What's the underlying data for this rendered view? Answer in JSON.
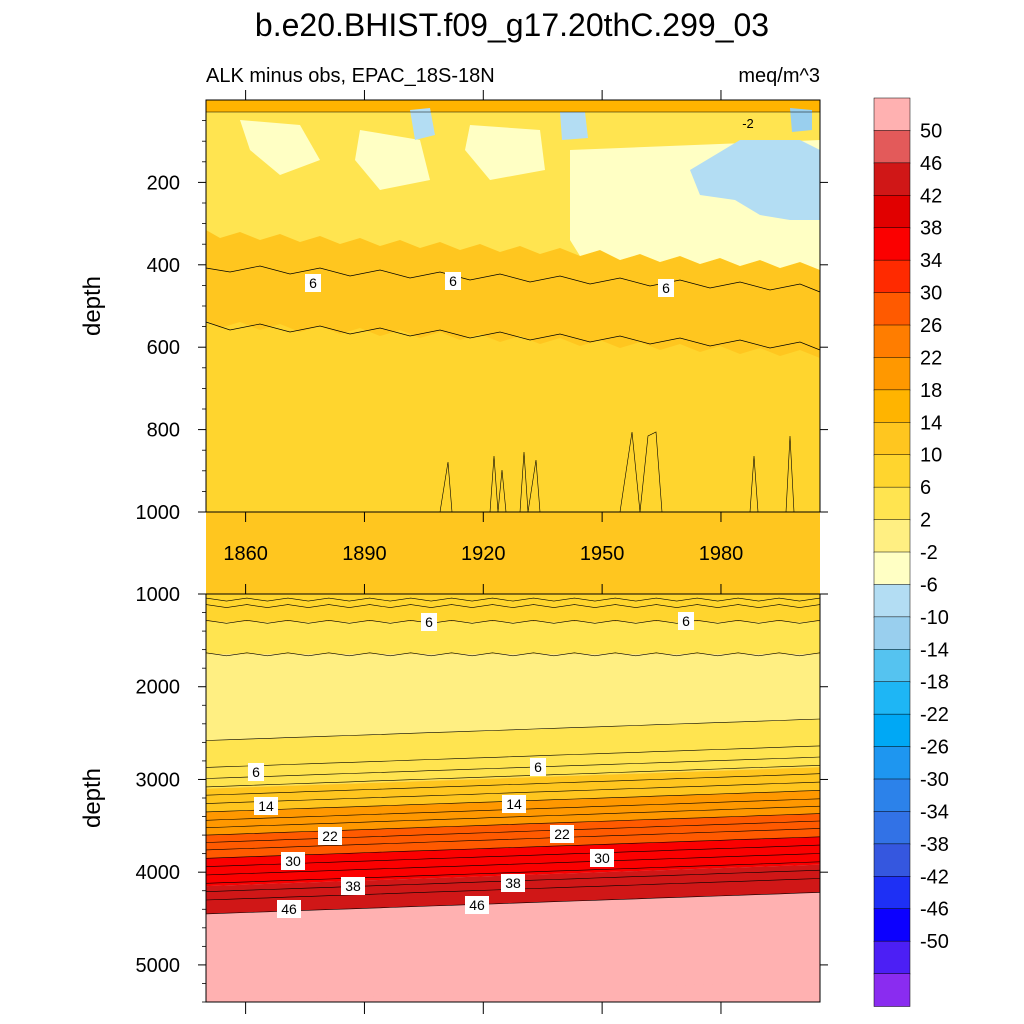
{
  "title": "b.e20.BHIST.f09_g17.20thC.299_03",
  "subtitle_left": "ALK minus obs, EPAC_18S-18N",
  "subtitle_right": "meq/m^3",
  "colorbar": {
    "labels": [
      "50",
      "46",
      "42",
      "38",
      "34",
      "30",
      "26",
      "22",
      "18",
      "14",
      "10",
      "6",
      "2",
      "-2",
      "-6",
      "-10",
      "-14",
      "-18",
      "-22",
      "-26",
      "-30",
      "-34",
      "-38",
      "-42",
      "-46",
      "-50"
    ],
    "colors": [
      "#ffb1b1",
      "#e35a5a",
      "#d01717",
      "#e10000",
      "#fb0000",
      "#ff2a00",
      "#ff5a00",
      "#ff7d00",
      "#ff9800",
      "#ffb400",
      "#ffc61f",
      "#ffd52e",
      "#ffe450",
      "#ffef82",
      "#ffffc4",
      "#b3ddf3",
      "#99cfee",
      "#55c3f0",
      "#1eb6f5",
      "#00a8f5",
      "#1e96f0",
      "#2c82ea",
      "#3272e6",
      "#3557df",
      "#1e30f5",
      "#0c00ff",
      "#4c1ff5",
      "#8a2cf0"
    ]
  },
  "chart_data": [
    {
      "type": "heatmap",
      "panel": "upper",
      "ylabel": "depth",
      "y_tick_labels": [
        "200",
        "400",
        "600",
        "800",
        "1000"
      ],
      "x_tick_labels": [
        "1860",
        "1890",
        "1920",
        "1950",
        "1980"
      ],
      "xlim": [
        1850,
        2005
      ],
      "ylim": [
        0,
        1000
      ],
      "contour_labels": [
        "6",
        "6",
        "6",
        "-2"
      ],
      "bands": [
        {
          "depth_top": 0,
          "depth_bottom": 10,
          "value": 10
        },
        {
          "depth_top": 10,
          "depth_bottom": 300,
          "value": 6,
          "note": "patches of 2, -2 and -6 in upper 300 m; -2/-6 region after 1980"
        },
        {
          "depth_top": 300,
          "depth_bottom": 420,
          "value": 6
        },
        {
          "depth_top": 420,
          "depth_bottom": 620,
          "value": 8
        },
        {
          "depth_top": 620,
          "depth_bottom": 1000,
          "value": 12
        }
      ]
    },
    {
      "type": "heatmap",
      "panel": "lower",
      "ylabel": "depth",
      "y_tick_labels": [
        "1000",
        "2000",
        "3000",
        "4000",
        "5000"
      ],
      "xlim": [
        1850,
        2005
      ],
      "ylim": [
        1000,
        5400
      ],
      "contour_labels": [
        "6",
        "6",
        "6",
        "6",
        "14",
        "14",
        "22",
        "22",
        "30",
        "30",
        "38",
        "38",
        "46",
        "46"
      ],
      "bands": [
        {
          "depth_top": 1000,
          "depth_bottom": 1300,
          "value": 8
        },
        {
          "depth_top": 1300,
          "depth_bottom": 1650,
          "value": 4
        },
        {
          "depth_top": 1650,
          "depth_bottom": 2580,
          "value": 0
        },
        {
          "depth_top": 2580,
          "depth_bottom": 3100,
          "value": 4
        },
        {
          "depth_top": 3100,
          "depth_bottom": 3350,
          "value": 12
        },
        {
          "depth_top": 3350,
          "depth_bottom": 3600,
          "value": 20
        },
        {
          "depth_top": 3600,
          "depth_bottom": 3850,
          "value": 28
        },
        {
          "depth_top": 3850,
          "depth_bottom": 4150,
          "value": 36
        },
        {
          "depth_top": 4150,
          "depth_bottom": 4450,
          "value": 44
        },
        {
          "depth_top": 4450,
          "depth_bottom": 5400,
          "value": 52
        }
      ]
    }
  ]
}
